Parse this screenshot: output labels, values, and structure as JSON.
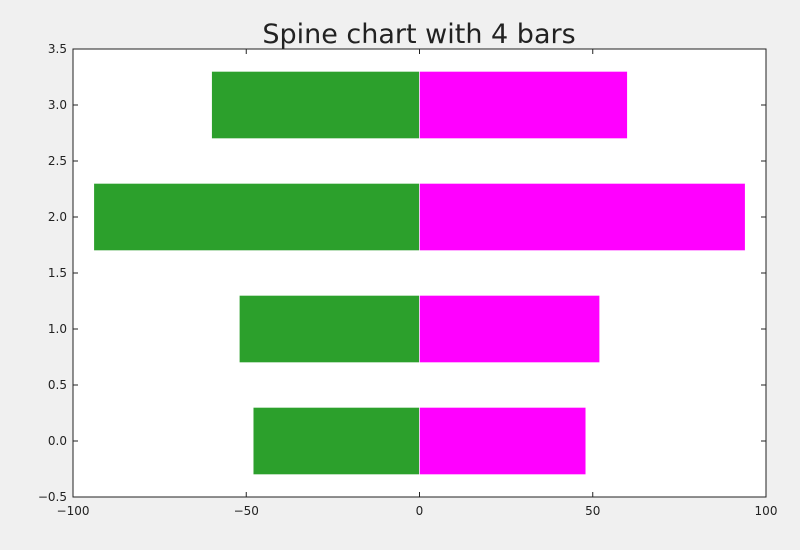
{
  "chart_data": {
    "type": "bar",
    "orientation": "horizontal",
    "title": "Spine chart with 4 bars",
    "xlabel": "",
    "ylabel": "",
    "xlim": [
      -100,
      100
    ],
    "ylim": [
      -0.5,
      3.5
    ],
    "xticks": [
      -100,
      -50,
      0,
      50,
      100
    ],
    "xtick_labels": [
      "−100",
      "−50",
      "0",
      "50",
      "100"
    ],
    "yticks": [
      -0.5,
      0.0,
      0.5,
      1.0,
      1.5,
      2.0,
      2.5,
      3.0,
      3.5
    ],
    "ytick_labels": [
      "−0.5",
      "0.0",
      "0.5",
      "1.0",
      "1.5",
      "2.0",
      "2.5",
      "3.0",
      "3.5"
    ],
    "categories": [
      0,
      1,
      2,
      3
    ],
    "bar_height": 0.6,
    "grid": false,
    "legend": "none",
    "series": [
      {
        "values": [
          -48,
          -52,
          -94,
          -60
        ],
        "color": "#2ca02c"
      },
      {
        "values": [
          48,
          52,
          94,
          60
        ],
        "color": "#ff00ff"
      }
    ]
  }
}
